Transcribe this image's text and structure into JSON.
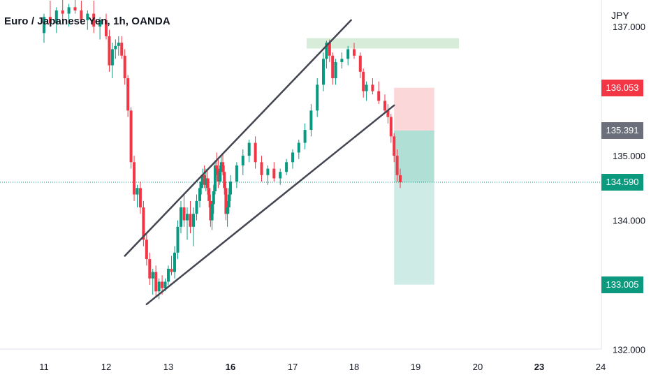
{
  "header": {
    "title": "Euro / Japanese Yen, 1h, OANDA"
  },
  "axis": {
    "currency": "JPY"
  },
  "chart_data": {
    "type": "candlestick",
    "title": "Euro / Japanese Yen, 1h, OANDA",
    "symbol": "EURJPY",
    "interval": "1h",
    "broker": "OANDA",
    "currency": "JPY",
    "y_ticks": [
      "137.000",
      "135.000",
      "134.000",
      "132.000"
    ],
    "x_ticks": [
      {
        "label": "11",
        "bold": false
      },
      {
        "label": "12",
        "bold": false
      },
      {
        "label": "13",
        "bold": false
      },
      {
        "label": "16",
        "bold": true
      },
      {
        "label": "17",
        "bold": false
      },
      {
        "label": "18",
        "bold": false
      },
      {
        "label": "19",
        "bold": false
      },
      {
        "label": "20",
        "bold": false
      },
      {
        "label": "23",
        "bold": true
      },
      {
        "label": "24",
        "bold": false
      }
    ],
    "ylim": [
      131.83,
      137.6
    ],
    "price_labels": {
      "stop": "136.053",
      "entry": "135.391",
      "last": "134.590",
      "target": "133.005"
    },
    "levels": {
      "stop": 136.053,
      "entry": 135.391,
      "last": 134.59,
      "target": 133.005,
      "resistance_zone": [
        136.66,
        136.82
      ]
    },
    "position": {
      "type": "short",
      "entry": 135.391,
      "stop": 136.053,
      "target": 133.005,
      "start_day": 18.65,
      "end_day": 19.3
    },
    "channel": {
      "upper": {
        "from": [
          12.3,
          133.45
        ],
        "to": [
          17.95,
          137.1
        ]
      },
      "lower": {
        "from": [
          12.65,
          132.7
        ],
        "to": [
          18.65,
          135.78
        ]
      }
    },
    "ohlc": [
      [
        11.0,
        136.9,
        137.2,
        136.75,
        137.15
      ],
      [
        11.1,
        137.15,
        137.4,
        137.0,
        137.05
      ],
      [
        11.2,
        137.05,
        137.3,
        136.9,
        137.25
      ],
      [
        11.3,
        137.25,
        137.45,
        137.1,
        137.2
      ],
      [
        11.4,
        137.2,
        137.35,
        137.0,
        137.3
      ],
      [
        11.5,
        137.3,
        137.6,
        137.2,
        137.25
      ],
      [
        11.6,
        137.25,
        137.4,
        137.05,
        137.1
      ],
      [
        11.7,
        137.1,
        137.25,
        136.95,
        137.2
      ],
      [
        11.8,
        137.2,
        137.4,
        136.9,
        137.0
      ],
      [
        11.9,
        137.0,
        137.15,
        136.8,
        137.1
      ],
      [
        12.0,
        137.1,
        137.2,
        136.8,
        136.85
      ],
      [
        12.05,
        136.85,
        136.95,
        136.3,
        136.4
      ],
      [
        12.1,
        136.4,
        136.75,
        136.2,
        136.65
      ],
      [
        12.15,
        136.65,
        136.8,
        136.5,
        136.7
      ],
      [
        12.2,
        136.7,
        136.85,
        136.55,
        136.75
      ],
      [
        12.25,
        136.75,
        136.85,
        136.5,
        136.55
      ],
      [
        12.3,
        136.55,
        136.65,
        136.1,
        136.2
      ],
      [
        12.35,
        136.2,
        136.25,
        135.6,
        135.7
      ],
      [
        12.4,
        135.7,
        135.75,
        134.8,
        134.9
      ],
      [
        12.45,
        134.9,
        135.0,
        134.3,
        134.4
      ],
      [
        12.5,
        134.4,
        134.55,
        134.2,
        134.5
      ],
      [
        12.55,
        134.5,
        134.6,
        134.1,
        134.2
      ],
      [
        12.6,
        134.2,
        134.3,
        133.6,
        133.7
      ],
      [
        12.65,
        133.7,
        133.8,
        133.3,
        133.4
      ],
      [
        12.7,
        133.4,
        133.5,
        133.0,
        133.1
      ],
      [
        12.75,
        133.1,
        133.25,
        132.85,
        133.2
      ],
      [
        12.8,
        133.2,
        133.3,
        132.8,
        132.9
      ],
      [
        12.85,
        132.9,
        133.1,
        132.78,
        133.05
      ],
      [
        12.9,
        133.05,
        133.15,
        132.85,
        132.95
      ],
      [
        12.95,
        132.95,
        133.1,
        132.9,
        133.05
      ],
      [
        13.0,
        133.05,
        133.3,
        133.0,
        133.25
      ],
      [
        13.1,
        133.25,
        133.45,
        133.15,
        133.2
      ],
      [
        13.2,
        133.2,
        133.6,
        133.1,
        133.5
      ],
      [
        13.3,
        133.5,
        134.0,
        133.4,
        133.9
      ],
      [
        13.4,
        133.9,
        134.3,
        133.8,
        134.2
      ],
      [
        13.5,
        134.2,
        134.4,
        133.9,
        134.0
      ],
      [
        13.6,
        134.0,
        134.2,
        133.7,
        134.1
      ],
      [
        13.7,
        134.1,
        134.3,
        133.8,
        133.9
      ],
      [
        13.8,
        133.9,
        134.2,
        133.6,
        134.1
      ],
      [
        13.9,
        134.1,
        134.4,
        134.0,
        134.3
      ],
      [
        14.0,
        134.3,
        134.6,
        134.2,
        134.5
      ],
      [
        14.1,
        134.5,
        134.7,
        134.4,
        134.6
      ],
      [
        14.2,
        134.6,
        134.8,
        134.5,
        134.7
      ],
      [
        14.3,
        134.7,
        134.85,
        134.5,
        134.55
      ],
      [
        14.4,
        134.55,
        134.8,
        134.45,
        134.65
      ],
      [
        14.5,
        134.65,
        134.8,
        134.4,
        134.5
      ],
      [
        14.6,
        134.5,
        134.65,
        134.2,
        134.3
      ],
      [
        14.7,
        134.3,
        134.4,
        133.9,
        134.0
      ],
      [
        14.8,
        134.0,
        134.3,
        133.85,
        134.25
      ],
      [
        14.9,
        134.25,
        134.55,
        134.1,
        134.45
      ],
      [
        15.0,
        134.45,
        134.9,
        134.4,
        134.85
      ],
      [
        15.1,
        134.85,
        135.05,
        134.7,
        134.8
      ],
      [
        15.2,
        134.8,
        134.95,
        134.5,
        134.6
      ],
      [
        15.3,
        134.6,
        134.85,
        134.55,
        134.75
      ],
      [
        15.4,
        134.75,
        135.0,
        134.6,
        134.9
      ],
      [
        15.5,
        134.9,
        135.05,
        134.7,
        134.75
      ],
      [
        15.6,
        134.75,
        134.85,
        134.4,
        134.5
      ],
      [
        15.7,
        134.5,
        134.6,
        134.0,
        134.1
      ],
      [
        15.8,
        134.1,
        134.3,
        133.9,
        134.2
      ],
      [
        15.9,
        134.2,
        134.5,
        134.1,
        134.4
      ],
      [
        16.0,
        134.4,
        134.7,
        134.3,
        134.6
      ],
      [
        16.1,
        134.6,
        134.9,
        134.5,
        134.85
      ],
      [
        16.2,
        134.85,
        135.1,
        134.7,
        135.0
      ],
      [
        16.3,
        135.0,
        135.25,
        134.9,
        135.2
      ],
      [
        16.4,
        135.2,
        135.3,
        134.8,
        134.9
      ],
      [
        16.5,
        134.9,
        135.0,
        134.6,
        134.7
      ],
      [
        16.6,
        134.7,
        134.85,
        134.55,
        134.8
      ],
      [
        16.7,
        134.8,
        134.9,
        134.6,
        134.65
      ],
      [
        16.8,
        134.65,
        134.8,
        134.55,
        134.75
      ],
      [
        16.9,
        134.75,
        134.95,
        134.7,
        134.9
      ],
      [
        17.0,
        134.9,
        135.1,
        134.8,
        135.05
      ],
      [
        17.1,
        135.05,
        135.25,
        134.95,
        135.2
      ],
      [
        17.2,
        135.2,
        135.5,
        135.1,
        135.4
      ],
      [
        17.3,
        135.4,
        135.8,
        135.3,
        135.7
      ],
      [
        17.4,
        135.7,
        136.2,
        135.6,
        136.1
      ],
      [
        17.5,
        136.1,
        136.6,
        136.0,
        136.5
      ],
      [
        17.55,
        136.5,
        136.78,
        136.35,
        136.75
      ],
      [
        17.6,
        136.75,
        136.8,
        136.45,
        136.55
      ],
      [
        17.65,
        136.55,
        136.6,
        136.1,
        136.2
      ],
      [
        17.7,
        136.2,
        136.5,
        136.1,
        136.45
      ],
      [
        17.8,
        136.45,
        136.6,
        136.35,
        136.5
      ],
      [
        17.9,
        136.5,
        136.7,
        136.4,
        136.65
      ],
      [
        18.0,
        136.65,
        136.75,
        136.5,
        136.55
      ],
      [
        18.1,
        136.55,
        136.6,
        136.2,
        136.3
      ],
      [
        18.15,
        136.3,
        136.35,
        135.9,
        136.0
      ],
      [
        18.2,
        136.0,
        136.15,
        135.85,
        136.1
      ],
      [
        18.3,
        136.1,
        136.2,
        135.95,
        136.0
      ],
      [
        18.4,
        136.0,
        136.15,
        135.8,
        135.85
      ],
      [
        18.5,
        135.85,
        135.95,
        135.65,
        135.7
      ],
      [
        18.55,
        135.7,
        135.8,
        135.5,
        135.6
      ],
      [
        18.6,
        135.6,
        135.65,
        135.2,
        135.3
      ],
      [
        18.65,
        135.3,
        135.35,
        134.9,
        135.0
      ],
      [
        18.7,
        135.0,
        135.1,
        134.6,
        134.7
      ],
      [
        18.75,
        134.7,
        134.8,
        134.5,
        134.59
      ]
    ]
  }
}
